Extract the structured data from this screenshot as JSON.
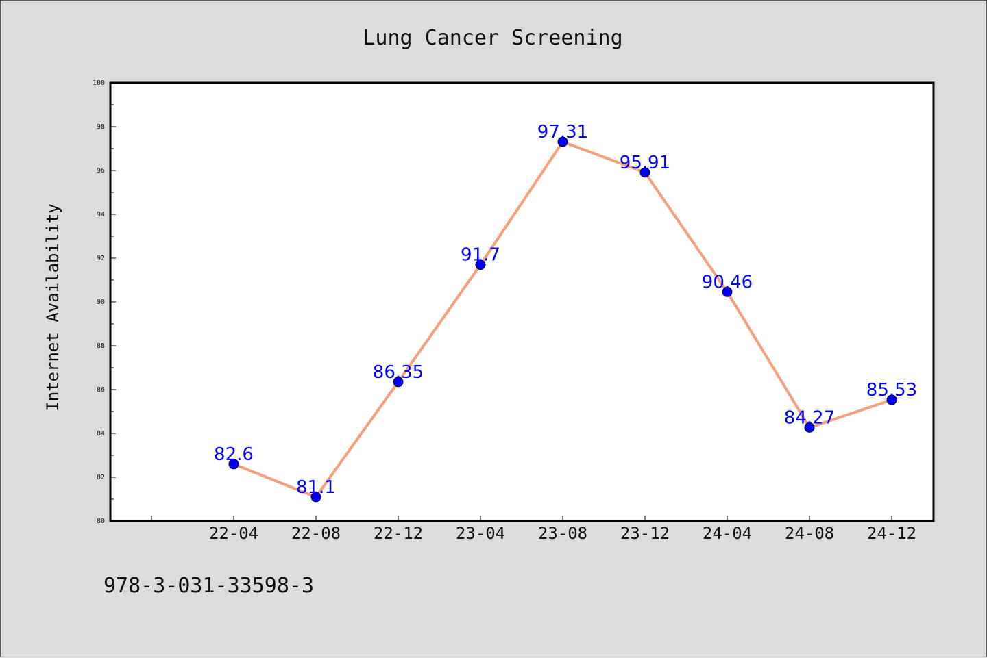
{
  "chart_data": {
    "type": "line",
    "title": "Lung Cancer Screening",
    "xlabel": "",
    "ylabel": "Internet Availability",
    "categories": [
      "22-04",
      "22-08",
      "22-12",
      "23-04",
      "23-08",
      "23-12",
      "24-04",
      "24-08",
      "24-12"
    ],
    "values": [
      82.6,
      81.1,
      86.35,
      91.7,
      97.31,
      95.91,
      90.46,
      84.27,
      85.53
    ],
    "data_labels": [
      "82.6",
      "81.1",
      "86.35",
      "91.7",
      "97.31",
      "95.91",
      "90.46",
      "84.27",
      "85.53"
    ],
    "ylim": [
      80,
      100
    ],
    "yticks": [
      80,
      82,
      84,
      86,
      88,
      90,
      92,
      94,
      96,
      98,
      100
    ],
    "ytick_labels": [
      "80",
      "82",
      "84",
      "86",
      "88",
      "90",
      "92",
      "94",
      "96",
      "98",
      "100"
    ],
    "grid": false,
    "legend": "none",
    "line_color": "#f5a07a",
    "marker_color": "#0000ff",
    "label_color": "#0000ff",
    "background_color": "#dcdcdc",
    "plot_background_color": "#ffffff"
  },
  "footnote": "978-3-031-33598-3"
}
